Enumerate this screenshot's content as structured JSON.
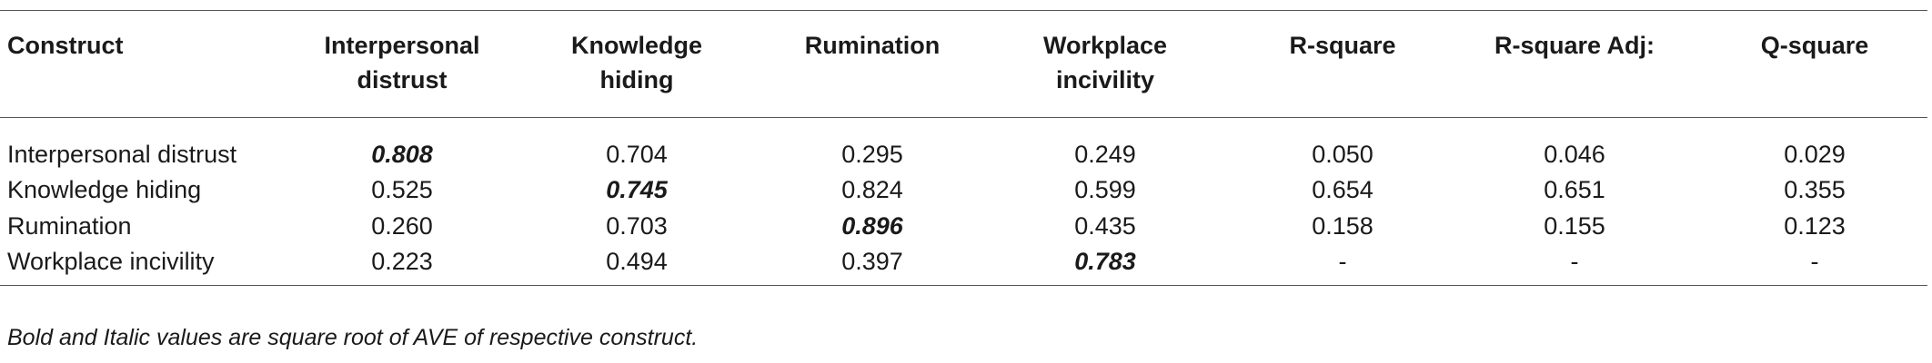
{
  "table": {
    "header": [
      "Construct",
      "Interpersonal distrust",
      "Knowledge hiding",
      "Rumination",
      "Workplace incivility",
      "R-square",
      "R-square Adj:",
      "Q-square"
    ],
    "rows": [
      [
        "Interpersonal distrust",
        "0.808",
        "0.704",
        "0.295",
        "0.249",
        "0.050",
        "0.046",
        "0.029"
      ],
      [
        "Knowledge hiding",
        "0.525",
        "0.745",
        "0.824",
        "0.599",
        "0.654",
        "0.651",
        "0.355"
      ],
      [
        "Rumination",
        "0.260",
        "0.703",
        "0.896",
        "0.435",
        "0.158",
        "0.155",
        "0.123"
      ],
      [
        "Workplace incivility",
        "0.223",
        "0.494",
        "0.397",
        "0.783",
        "-",
        "-",
        "-"
      ]
    ],
    "note": "Bold and Italic values are square root of AVE of respective construct."
  }
}
